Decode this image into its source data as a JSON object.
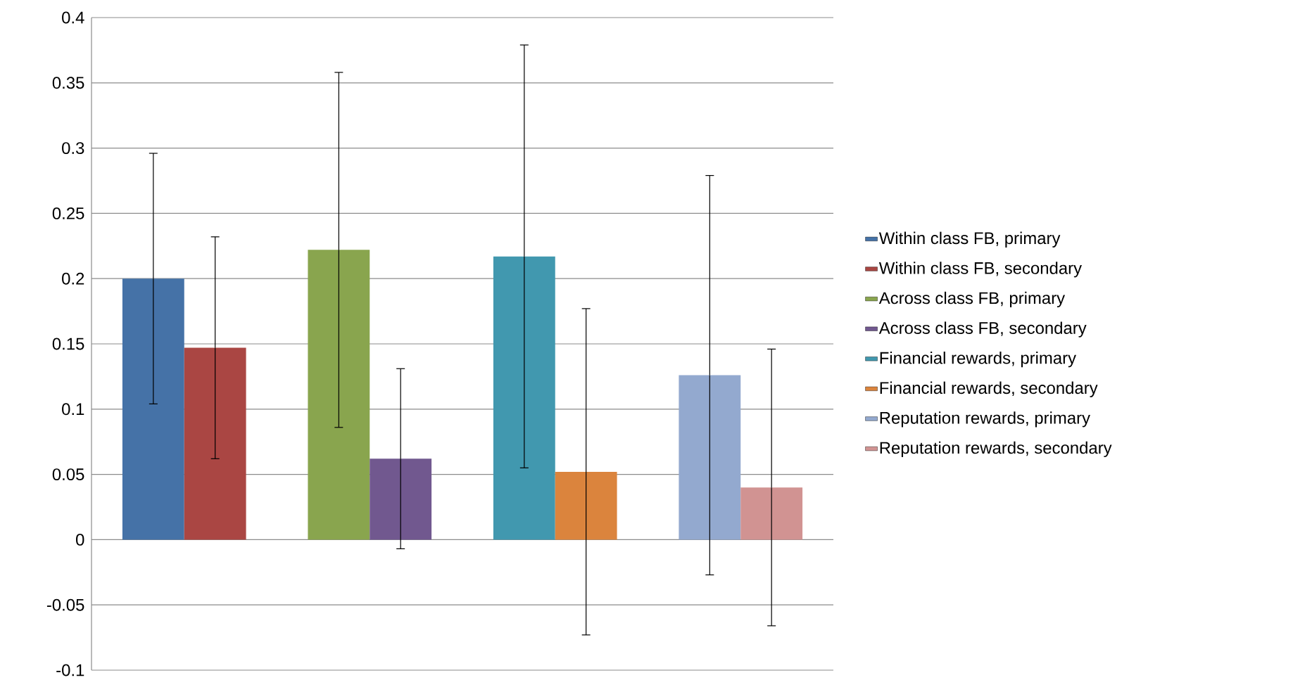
{
  "chart_data": {
    "type": "bar",
    "categories": [
      null,
      null,
      null,
      null
    ],
    "series": [
      {
        "name": "Within class FB, primary",
        "color": "#4572a7",
        "values": [
          0.2,
          null,
          null,
          null
        ],
        "errors": [
          0.096,
          null,
          null,
          null
        ]
      },
      {
        "name": "Within class FB, secondary",
        "color": "#aa4643",
        "values": [
          0.147,
          null,
          null,
          null
        ],
        "errors": [
          0.085,
          null,
          null,
          null
        ]
      },
      {
        "name": "Across class FB, primary",
        "color": "#89a54e",
        "values": [
          null,
          0.222,
          null,
          null
        ],
        "errors": [
          null,
          0.136,
          null,
          null
        ]
      },
      {
        "name": "Across class FB, secondary",
        "color": "#71588f",
        "values": [
          null,
          0.062,
          null,
          null
        ],
        "errors": [
          null,
          0.069,
          null,
          null
        ]
      },
      {
        "name": "Financial rewards, primary",
        "color": "#4198af",
        "values": [
          null,
          null,
          0.217,
          null
        ],
        "errors": [
          null,
          null,
          0.162,
          null
        ]
      },
      {
        "name": "Financial rewards, secondary",
        "color": "#db843d",
        "values": [
          null,
          null,
          0.052,
          null
        ],
        "errors": [
          null,
          null,
          0.125,
          null
        ]
      },
      {
        "name": "Reputation rewards, primary",
        "color": "#93a9cf",
        "values": [
          null,
          null,
          null,
          0.126
        ],
        "errors": [
          null,
          null,
          null,
          0.153
        ]
      },
      {
        "name": "Reputation rewards, secondary",
        "color": "#d19392",
        "values": [
          null,
          null,
          null,
          0.04
        ],
        "errors": [
          null,
          null,
          null,
          0.106
        ]
      }
    ],
    "ylim": [
      -0.1,
      0.4
    ],
    "yticks": [
      -0.1,
      -0.05,
      0,
      0.05,
      0.1,
      0.15,
      0.2,
      0.25,
      0.3,
      0.35,
      0.4
    ],
    "grid": "y",
    "legend": "right",
    "tick_labels": "y"
  }
}
